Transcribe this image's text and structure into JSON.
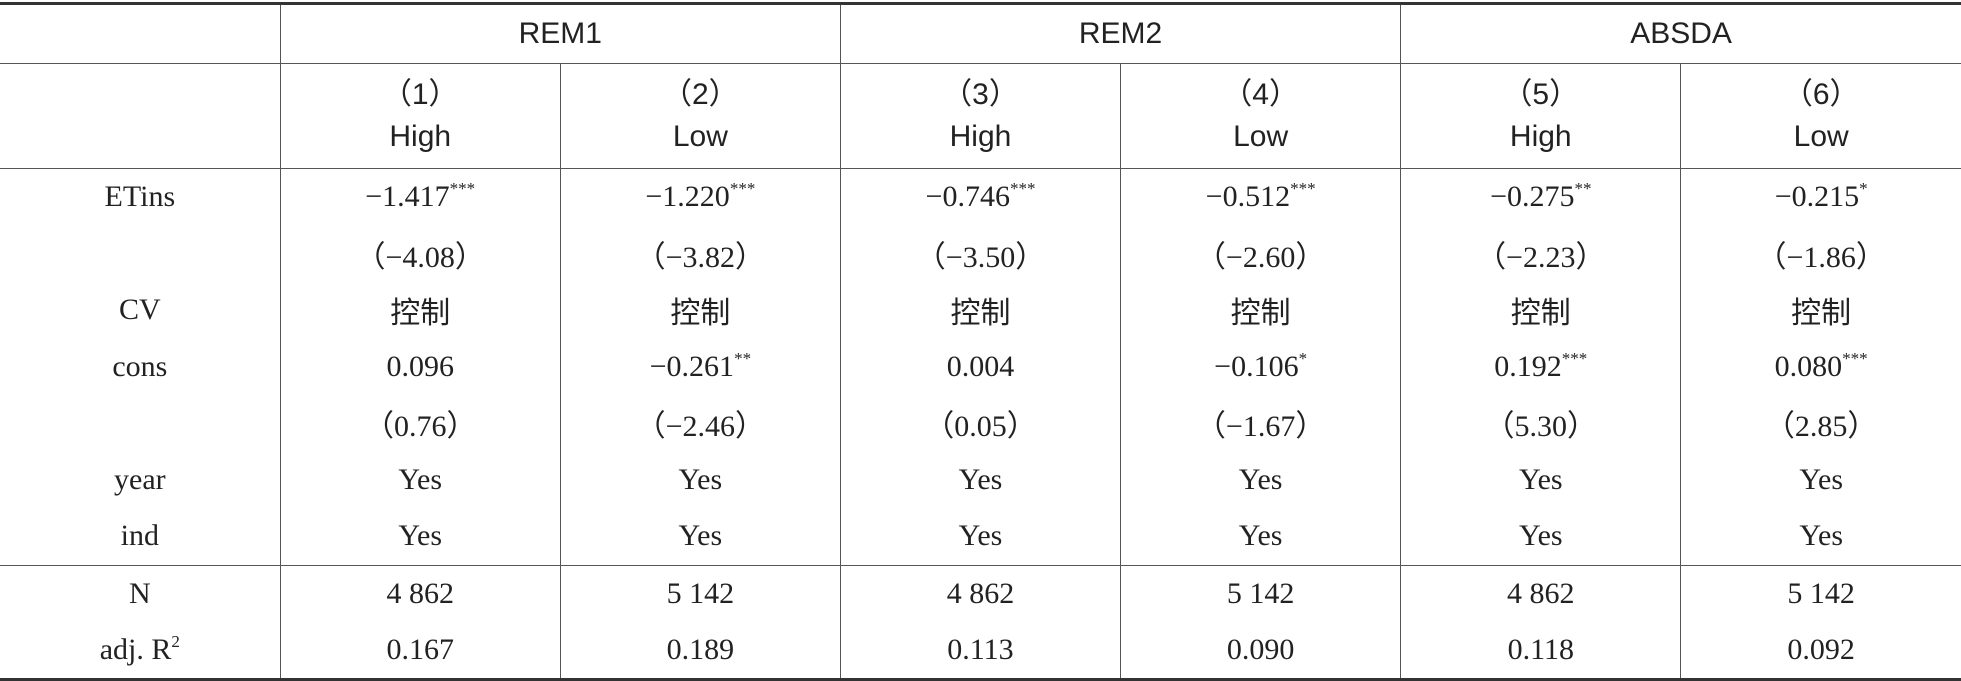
{
  "table": {
    "groups": [
      "REM1",
      "REM2",
      "ABSDA"
    ],
    "columns": [
      {
        "num": "（1）",
        "label": "High"
      },
      {
        "num": "（2）",
        "label": "Low"
      },
      {
        "num": "（3）",
        "label": "High"
      },
      {
        "num": "（4）",
        "label": "Low"
      },
      {
        "num": "（5）",
        "label": "High"
      },
      {
        "num": "（6）",
        "label": "Low"
      }
    ],
    "rows": [
      {
        "label": "ETins",
        "cells": [
          {
            "text": "−1.417",
            "sup": "***"
          },
          {
            "text": "−1.220",
            "sup": "***"
          },
          {
            "text": "−0.746",
            "sup": "***"
          },
          {
            "text": "−0.512",
            "sup": "***"
          },
          {
            "text": "−0.275",
            "sup": "**"
          },
          {
            "text": "−0.215",
            "sup": "*"
          }
        ]
      },
      {
        "label": null,
        "cells": [
          {
            "text": "（−4.08）"
          },
          {
            "text": "（−3.82）"
          },
          {
            "text": "（−3.50）"
          },
          {
            "text": "（−2.60）"
          },
          {
            "text": "（−2.23）"
          },
          {
            "text": "（−1.86）"
          }
        ]
      },
      {
        "label": "CV",
        "cells": [
          {
            "text": "控制"
          },
          {
            "text": "控制"
          },
          {
            "text": "控制"
          },
          {
            "text": "控制"
          },
          {
            "text": "控制"
          },
          {
            "text": "控制"
          }
        ]
      },
      {
        "label": "cons",
        "cells": [
          {
            "text": "0.096"
          },
          {
            "text": "−0.261",
            "sup": "**"
          },
          {
            "text": "0.004"
          },
          {
            "text": "−0.106",
            "sup": "*"
          },
          {
            "text": "0.192",
            "sup": "***"
          },
          {
            "text": "0.080",
            "sup": "***"
          }
        ]
      },
      {
        "label": null,
        "cells": [
          {
            "text": "（0.76）"
          },
          {
            "text": "（−2.46）"
          },
          {
            "text": "（0.05）"
          },
          {
            "text": "（−1.67）"
          },
          {
            "text": "（5.30）"
          },
          {
            "text": "（2.85）"
          }
        ]
      },
      {
        "label": "year",
        "cells": [
          {
            "text": "Yes"
          },
          {
            "text": "Yes"
          },
          {
            "text": "Yes"
          },
          {
            "text": "Yes"
          },
          {
            "text": "Yes"
          },
          {
            "text": "Yes"
          }
        ]
      },
      {
        "label": "ind",
        "cells": [
          {
            "text": "Yes"
          },
          {
            "text": "Yes"
          },
          {
            "text": "Yes"
          },
          {
            "text": "Yes"
          },
          {
            "text": "Yes"
          },
          {
            "text": "Yes"
          }
        ]
      }
    ],
    "summary_rows": [
      {
        "label": "N",
        "cells": [
          {
            "text": "4 862"
          },
          {
            "text": "5 142"
          },
          {
            "text": "4 862"
          },
          {
            "text": "5 142"
          },
          {
            "text": "4 862"
          },
          {
            "text": "5 142"
          }
        ]
      },
      {
        "label": "adj. R",
        "label_sup": "2",
        "cells": [
          {
            "text": "0.167"
          },
          {
            "text": "0.189"
          },
          {
            "text": "0.113"
          },
          {
            "text": "0.090"
          },
          {
            "text": "0.118"
          },
          {
            "text": "0.092"
          }
        ]
      }
    ]
  }
}
